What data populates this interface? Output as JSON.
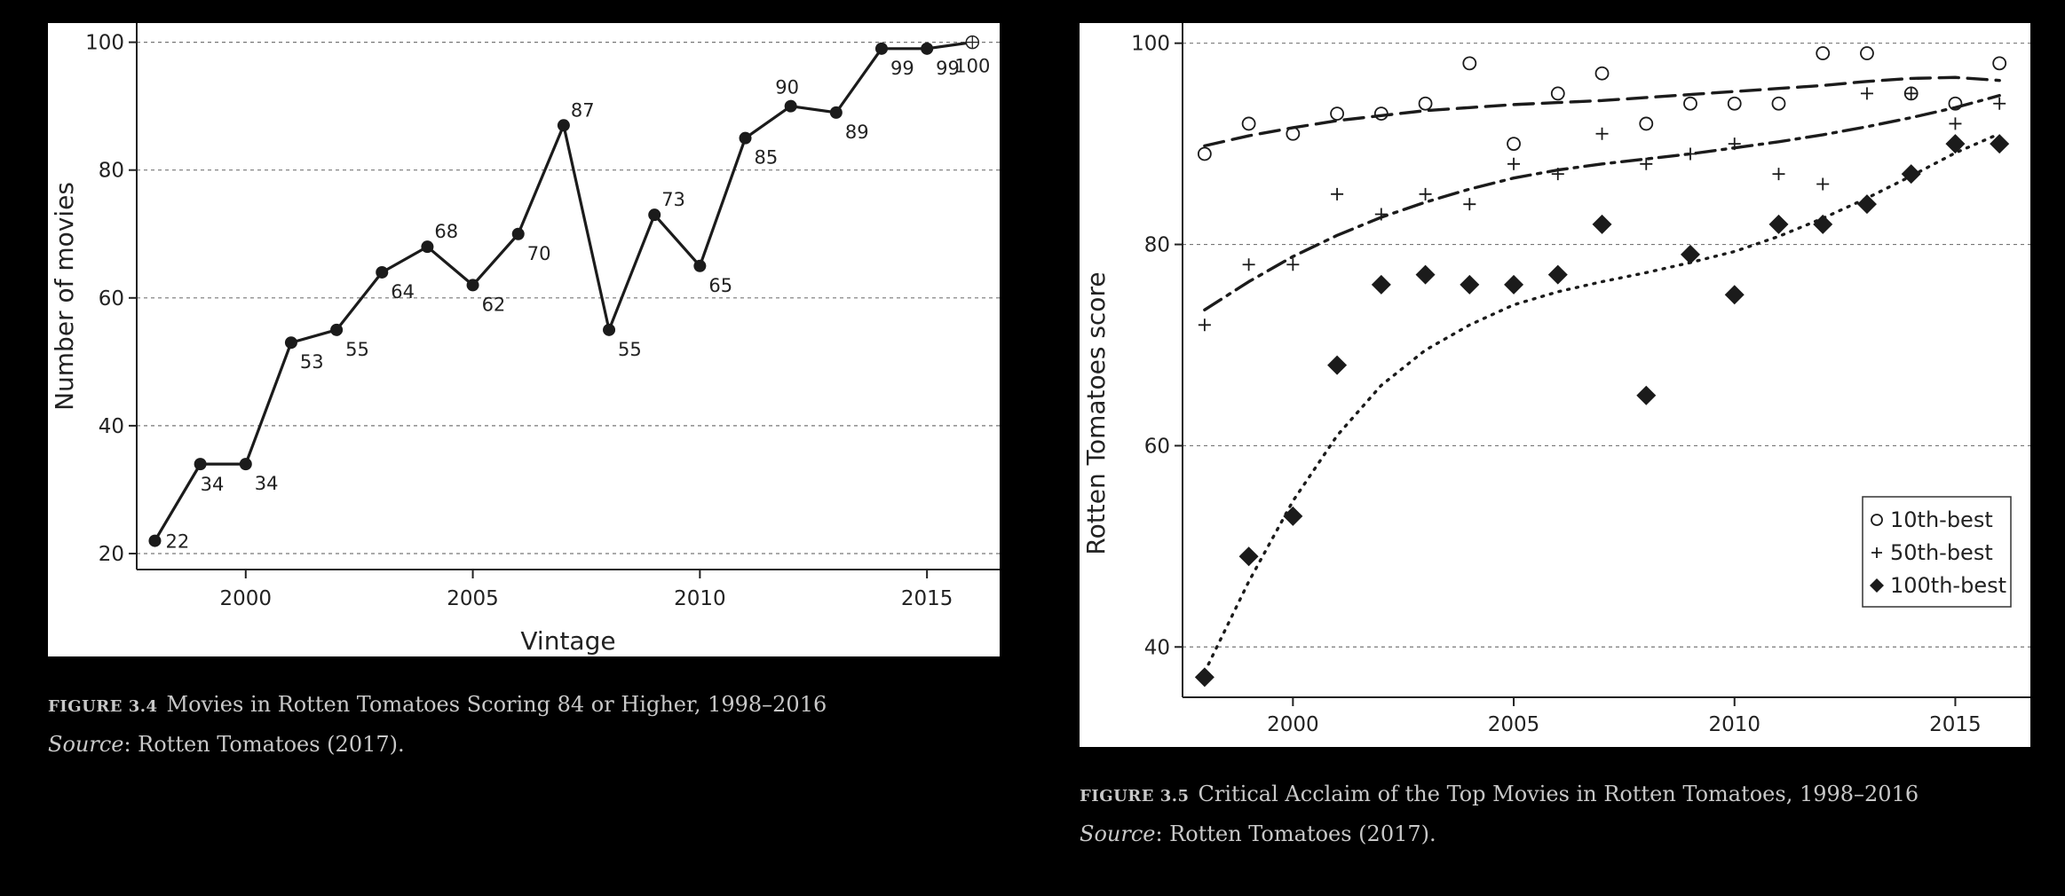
{
  "chart_data": [
    {
      "type": "line",
      "title": "",
      "xlabel": "Vintage",
      "ylabel": "Number of movies",
      "xlim": [
        1997.6,
        2016.6
      ],
      "ylim": [
        17.5,
        103
      ],
      "xticks": [
        2000,
        2005,
        2010,
        2015
      ],
      "yticks": [
        20,
        40,
        60,
        80,
        100
      ],
      "grid": "horizontal-dashed",
      "x": [
        1998,
        1999,
        2000,
        2001,
        2002,
        2003,
        2004,
        2005,
        2006,
        2007,
        2008,
        2009,
        2010,
        2011,
        2012,
        2013,
        2014,
        2015,
        2016
      ],
      "values": [
        22,
        34,
        34,
        53,
        55,
        64,
        68,
        62,
        70,
        87,
        55,
        73,
        65,
        85,
        90,
        89,
        99,
        99,
        100
      ],
      "labels": [
        "22",
        "34",
        "34",
        "53",
        "55",
        "64",
        "68",
        "62",
        "70",
        "87",
        "55",
        "73",
        "65",
        "85",
        "90",
        "89",
        "99",
        "99",
        "100"
      ]
    },
    {
      "type": "scatter",
      "title": "",
      "xlabel": "",
      "ylabel": "Rotten Tomatoes score",
      "xlim": [
        1997.5,
        2016.7
      ],
      "ylim": [
        35,
        102
      ],
      "xticks": [
        2000,
        2005,
        2010,
        2015
      ],
      "yticks": [
        40,
        60,
        80,
        100
      ],
      "grid": "horizontal-dashed",
      "legend_placement": "bottom-right",
      "x": [
        1998,
        1999,
        2000,
        2001,
        2002,
        2003,
        2004,
        2005,
        2006,
        2007,
        2008,
        2009,
        2010,
        2011,
        2012,
        2013,
        2014,
        2015,
        2016
      ],
      "series": [
        {
          "name": "10th-best",
          "marker": "circle",
          "trend": "dashed",
          "values": [
            89,
            92,
            91,
            93,
            93,
            94,
            98,
            90,
            95,
            97,
            92,
            94,
            94,
            94,
            99,
            99,
            95,
            94,
            98
          ],
          "trend_values": [
            89.8,
            90.8,
            91.6,
            92.3,
            92.8,
            93.3,
            93.6,
            93.9,
            94.1,
            94.3,
            94.6,
            94.9,
            95.2,
            95.5,
            95.8,
            96.2,
            96.5,
            96.6,
            96.3
          ]
        },
        {
          "name": "50th-best",
          "marker": "plus",
          "trend": "dash-dot",
          "values": [
            72,
            78,
            78,
            85,
            83,
            85,
            84,
            88,
            87,
            91,
            88,
            89,
            90,
            87,
            86,
            95,
            95,
            92,
            94
          ],
          "trend_values": [
            73.5,
            76.3,
            78.8,
            80.9,
            82.7,
            84.2,
            85.5,
            86.6,
            87.4,
            88.0,
            88.5,
            89.0,
            89.6,
            90.2,
            90.9,
            91.7,
            92.6,
            93.6,
            94.8
          ]
        },
        {
          "name": "100th-best",
          "marker": "diamond",
          "trend": "dotted",
          "values": [
            37,
            49,
            53,
            68,
            76,
            77,
            76,
            76,
            77,
            82,
            65,
            79,
            75,
            82,
            82,
            84,
            87,
            90,
            90
          ],
          "trend_values": [
            37.5,
            46.5,
            54.5,
            61,
            66,
            69.5,
            72,
            74,
            75.3,
            76.3,
            77.2,
            78.2,
            79.3,
            80.8,
            82.6,
            84.6,
            86.8,
            89.1,
            91.0
          ]
        }
      ]
    }
  ],
  "captions": {
    "left": {
      "fig_label": "FIGURE 3.4",
      "title": "Movies in Rotten Tomatoes Scoring 84 or Higher, 1998–2016",
      "source_label": "Source",
      "source_text": ": Rotten Tomatoes (2017)."
    },
    "right": {
      "fig_label": "FIGURE 3.5",
      "title": "Critical Acclaim of the Top Movies in Rotten Tomatoes, 1998–2016",
      "source_label": "Source",
      "source_text": ": Rotten Tomatoes (2017)."
    }
  }
}
